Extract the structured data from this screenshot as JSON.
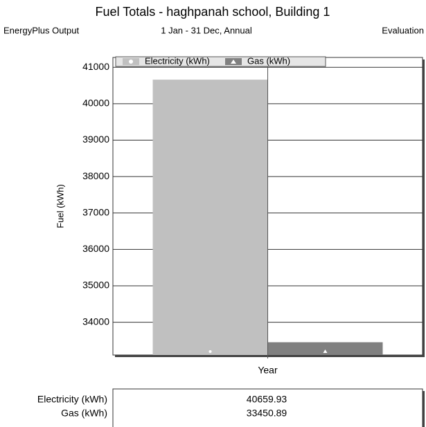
{
  "chart_data": {
    "type": "bar",
    "title": "Fuel Totals - haghpanah school, Building 1",
    "subtitle_left": "EnergyPlus Output",
    "subtitle_center": "1 Jan - 31 Dec, Annual",
    "subtitle_right": "Evaluation",
    "y_label": "Fuel (kWh)",
    "categories": [
      "Year"
    ],
    "series": [
      {
        "name": "Electricity (kWh)",
        "color": "#c0c0c0",
        "values": [
          40659.93
        ]
      },
      {
        "name": "Gas (kWh)",
        "color": "#808080",
        "values": [
          33450.89
        ]
      }
    ],
    "ylim": [
      33100,
      41270
    ],
    "yticks": [
      34000,
      35000,
      36000,
      37000,
      38000,
      39000,
      40000,
      41000
    ],
    "grid": true
  }
}
